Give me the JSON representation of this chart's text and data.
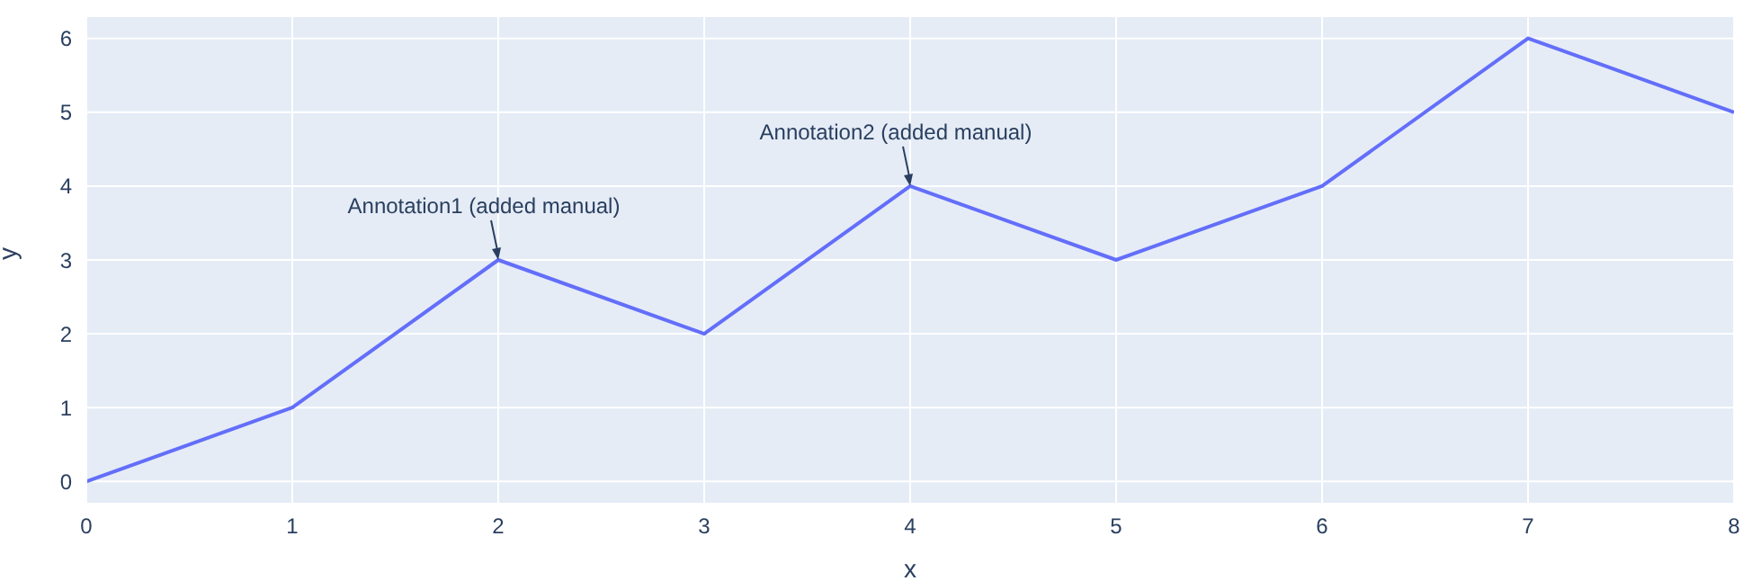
{
  "chart_data": {
    "type": "line",
    "x": [
      0,
      1,
      2,
      3,
      4,
      5,
      6,
      7,
      8
    ],
    "values": [
      0,
      1,
      3,
      2,
      4,
      3,
      4,
      6,
      5
    ],
    "color": "#636efa",
    "xlabel": "x",
    "ylabel": "y",
    "xlim": [
      0,
      8
    ],
    "ylim": [
      -0.3,
      6.3
    ],
    "xticks": [
      0,
      1,
      2,
      3,
      4,
      5,
      6,
      7,
      8
    ],
    "yticks": [
      0,
      1,
      2,
      3,
      4,
      5,
      6
    ],
    "grid": true,
    "marker": "none",
    "annotations": [
      {
        "text": "Annotation1 (added manual)",
        "x": 2,
        "y": 3
      },
      {
        "text": "Annotation2 (added manual)",
        "x": 4,
        "y": 4
      }
    ]
  }
}
